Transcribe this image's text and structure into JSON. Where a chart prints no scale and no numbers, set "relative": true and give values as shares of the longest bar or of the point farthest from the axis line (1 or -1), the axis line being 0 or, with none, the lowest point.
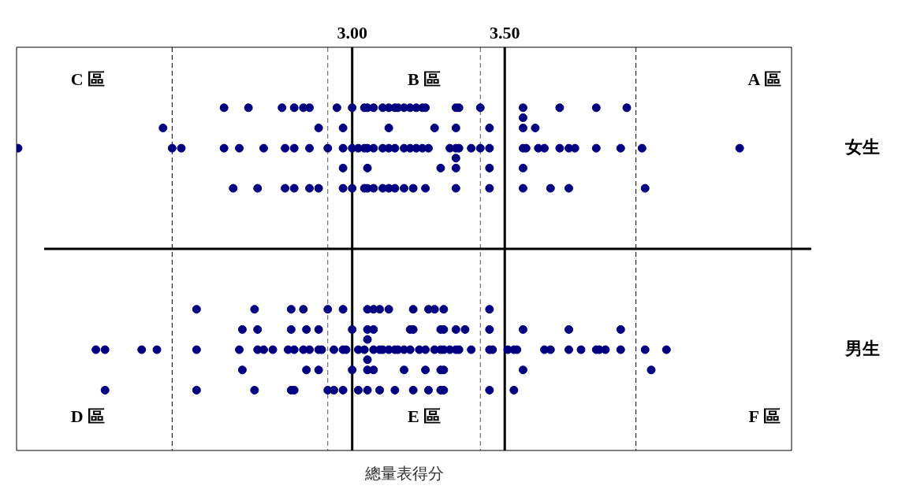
{
  "chart_data": {
    "type": "scatter",
    "xlabel": "總量表得分",
    "xlim": [
      1.9,
      4.44
    ],
    "xticks": [
      {
        "value": 3,
        "label": "3.00"
      },
      {
        "value": 3.5,
        "label": "3.50"
      }
    ],
    "relative": true,
    "tick_labels": "x",
    "legend": false,
    "marker": "circle",
    "annotations": [
      "C 區",
      "B 區",
      "A 區",
      "D 區",
      "E 區",
      "F 區"
    ],
    "ref_lines": [
      {
        "axis": "x",
        "value": 2.41,
        "color": "#000000",
        "line_style": "dashed"
      },
      {
        "axis": "x",
        "value": 2.92,
        "color": "#555555",
        "line_style": "dashed"
      },
      {
        "axis": "x",
        "value": 3.42,
        "color": "#555555",
        "line_style": "dashed"
      },
      {
        "axis": "x",
        "value": 3.93,
        "color": "#000000",
        "line_style": "dashed"
      },
      {
        "axis": "x",
        "value": 3,
        "color": "#000000",
        "line_style": "solid"
      },
      {
        "axis": "x",
        "value": 3.5,
        "color": "#000000",
        "line_style": "solid"
      },
      {
        "axis": "y",
        "value": 0.588,
        "color": "#000000",
        "line_style": "solid"
      }
    ],
    "series": [
      {
        "name": "女生",
        "color": "#000080",
        "x": [
          2.58,
          2.66,
          2.77,
          2.81,
          2.84,
          2.86,
          2.95,
          3.0,
          3.04,
          3.05,
          3.07,
          3.1,
          3.12,
          3.14,
          3.15,
          3.17,
          3.19,
          3.21,
          3.23,
          3.24,
          3.34,
          3.35,
          3.42,
          3.56,
          3.68,
          3.8,
          3.9,
          3.56,
          2.38,
          2.89,
          2.97,
          3.12,
          3.27,
          3.34,
          3.45,
          3.56,
          3.6,
          1.905,
          2.41,
          2.44,
          2.58,
          2.63,
          2.71,
          2.78,
          2.81,
          2.86,
          2.92,
          2.97,
          3.0,
          3.02,
          3.04,
          3.05,
          3.07,
          3.1,
          3.12,
          3.14,
          3.17,
          3.19,
          3.21,
          3.23,
          3.25,
          3.32,
          3.34,
          3.35,
          3.39,
          3.42,
          3.45,
          3.56,
          3.57,
          3.61,
          3.63,
          3.68,
          3.71,
          3.73,
          3.8,
          3.88,
          3.95,
          4.27,
          3.34,
          2.97,
          3.05,
          3.29,
          3.34,
          3.45,
          3.56,
          2.61,
          2.69,
          2.78,
          2.81,
          2.86,
          2.89,
          2.97,
          3.0,
          3.04,
          3.05,
          3.07,
          3.1,
          3.12,
          3.14,
          3.17,
          3.2,
          3.24,
          3.34,
          3.45,
          3.56,
          3.65,
          3.71,
          3.96
        ],
        "values": [
          1,
          1,
          1,
          1,
          1,
          1,
          1,
          1,
          1,
          1,
          1,
          1,
          1,
          1,
          1,
          1,
          1,
          1,
          1,
          1,
          1,
          1,
          1,
          1,
          1,
          1,
          1,
          0.971,
          0.941,
          0.941,
          0.941,
          0.941,
          0.941,
          0.941,
          0.941,
          0.941,
          0.941,
          0.882,
          0.882,
          0.882,
          0.882,
          0.882,
          0.882,
          0.882,
          0.882,
          0.882,
          0.882,
          0.882,
          0.882,
          0.882,
          0.882,
          0.882,
          0.882,
          0.882,
          0.882,
          0.882,
          0.882,
          0.882,
          0.882,
          0.882,
          0.882,
          0.882,
          0.882,
          0.882,
          0.882,
          0.882,
          0.882,
          0.882,
          0.882,
          0.882,
          0.882,
          0.882,
          0.882,
          0.882,
          0.882,
          0.882,
          0.882,
          0.882,
          0.853,
          0.824,
          0.824,
          0.824,
          0.824,
          0.824,
          0.824,
          0.765,
          0.765,
          0.765,
          0.765,
          0.765,
          0.765,
          0.765,
          0.765,
          0.765,
          0.765,
          0.765,
          0.765,
          0.765,
          0.765,
          0.765,
          0.765,
          0.765,
          0.765,
          0.765,
          0.765,
          0.765,
          0.765,
          0.765
        ]
      },
      {
        "name": "男生",
        "color": "#000080",
        "x": [
          2.49,
          2.68,
          2.8,
          2.84,
          2.92,
          2.97,
          3.05,
          3.07,
          3.09,
          3.12,
          3.2,
          3.25,
          3.27,
          3.3,
          3.45,
          2.64,
          2.69,
          2.8,
          2.85,
          2.89,
          3.0,
          3.05,
          3.07,
          3.19,
          3.2,
          3.29,
          3.3,
          3.34,
          3.37,
          3.45,
          3.56,
          3.71,
          3.88,
          3.05,
          2.16,
          2.19,
          2.31,
          2.36,
          2.49,
          2.63,
          2.69,
          2.71,
          2.74,
          2.79,
          2.81,
          2.84,
          2.86,
          2.89,
          2.9,
          2.94,
          2.97,
          2.98,
          3.02,
          3.04,
          3.07,
          3.09,
          3.1,
          3.12,
          3.14,
          3.15,
          3.17,
          3.19,
          3.22,
          3.24,
          3.27,
          3.29,
          3.3,
          3.32,
          3.34,
          3.35,
          3.39,
          3.45,
          3.46,
          3.51,
          3.53,
          3.54,
          3.63,
          3.65,
          3.71,
          3.75,
          3.8,
          3.81,
          3.83,
          3.88,
          3.96,
          4.03,
          3.05,
          2.64,
          2.85,
          2.89,
          3.0,
          3.05,
          3.07,
          3.17,
          3.24,
          3.29,
          3.3,
          3.56,
          3.98,
          2.19,
          2.49,
          2.68,
          2.8,
          2.81,
          2.92,
          2.94,
          2.97,
          3.02,
          3.05,
          3.09,
          3.14,
          3.2,
          3.25,
          3.29,
          3.3,
          3.45,
          3.53
        ],
        "values": [
          0.412,
          0.412,
          0.412,
          0.412,
          0.412,
          0.412,
          0.412,
          0.412,
          0.412,
          0.412,
          0.412,
          0.412,
          0.412,
          0.412,
          0.412,
          0.353,
          0.353,
          0.353,
          0.353,
          0.353,
          0.353,
          0.353,
          0.353,
          0.353,
          0.353,
          0.353,
          0.353,
          0.353,
          0.353,
          0.353,
          0.353,
          0.353,
          0.353,
          0.324,
          0.294,
          0.294,
          0.294,
          0.294,
          0.294,
          0.294,
          0.294,
          0.294,
          0.294,
          0.294,
          0.294,
          0.294,
          0.294,
          0.294,
          0.294,
          0.294,
          0.294,
          0.294,
          0.294,
          0.294,
          0.294,
          0.294,
          0.294,
          0.294,
          0.294,
          0.294,
          0.294,
          0.294,
          0.294,
          0.294,
          0.294,
          0.294,
          0.294,
          0.294,
          0.294,
          0.294,
          0.294,
          0.294,
          0.294,
          0.294,
          0.294,
          0.294,
          0.294,
          0.294,
          0.294,
          0.294,
          0.294,
          0.294,
          0.294,
          0.294,
          0.294,
          0.294,
          0.265,
          0.235,
          0.235,
          0.235,
          0.235,
          0.235,
          0.235,
          0.235,
          0.235,
          0.235,
          0.235,
          0.235,
          0.235,
          0.176,
          0.176,
          0.176,
          0.176,
          0.176,
          0.176,
          0.176,
          0.176,
          0.176,
          0.176,
          0.176,
          0.176,
          0.176,
          0.176,
          0.176,
          0.176,
          0.176,
          0.176
        ]
      }
    ]
  }
}
